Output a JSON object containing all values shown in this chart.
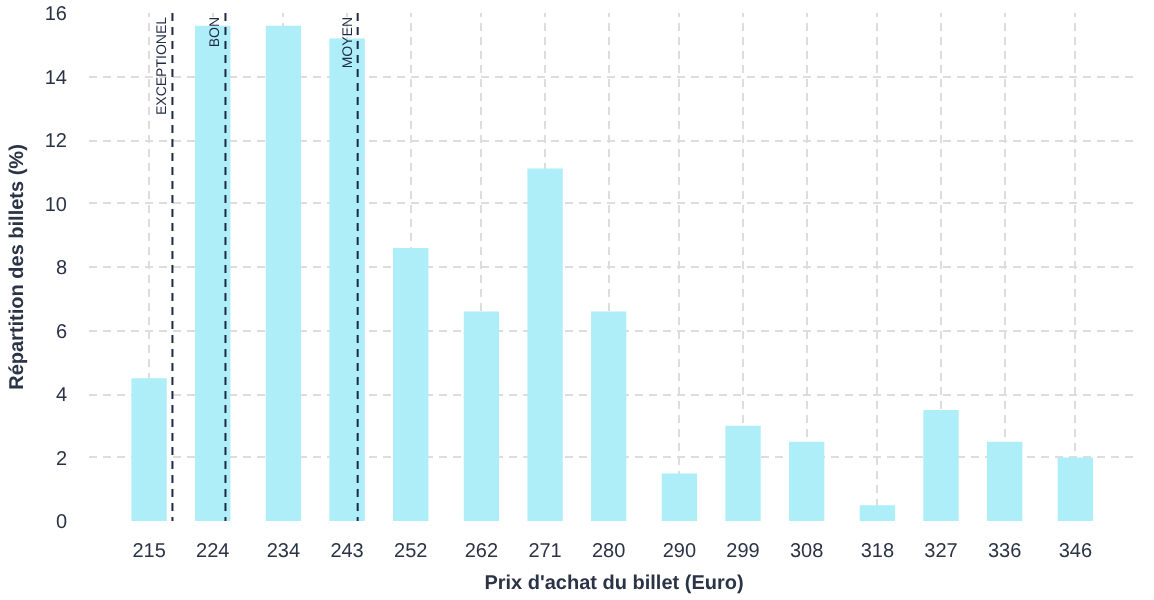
{
  "chart_data": {
    "type": "bar",
    "xlabel": "Prix d'achat du billet (Euro)",
    "ylabel": "Répartition des billets (%)",
    "x": [
      215,
      224,
      234,
      243,
      252,
      262,
      271,
      280,
      290,
      299,
      308,
      318,
      327,
      336,
      346
    ],
    "values": [
      4.5,
      15.6,
      15.6,
      15.2,
      8.6,
      6.6,
      11.1,
      6.6,
      1.5,
      3.0,
      2.5,
      0.5,
      3.5,
      2.5,
      2.0
    ],
    "color": "#aeeef8",
    "xlim": [
      206.5,
      355
    ],
    "xticks": [
      215,
      224,
      234,
      243,
      252,
      262,
      271,
      280,
      290,
      299,
      308,
      318,
      327,
      336,
      346
    ],
    "ylim": [
      0,
      16
    ],
    "yticks": [
      0,
      2,
      4,
      6,
      8,
      10,
      12,
      14,
      16
    ],
    "grid": true,
    "ref_lines": [
      {
        "axis": "x",
        "value": 218.3,
        "label": "EXCEPTIONEL",
        "color": "#1f2a44",
        "line_style": "dashed"
      },
      {
        "axis": "x",
        "value": 225.8,
        "label": "BON",
        "color": "#1f2a44",
        "line_style": "dashed"
      },
      {
        "axis": "x",
        "value": 244.5,
        "label": "MOYEN",
        "color": "#1f2a44",
        "line_style": "dashed"
      }
    ]
  }
}
